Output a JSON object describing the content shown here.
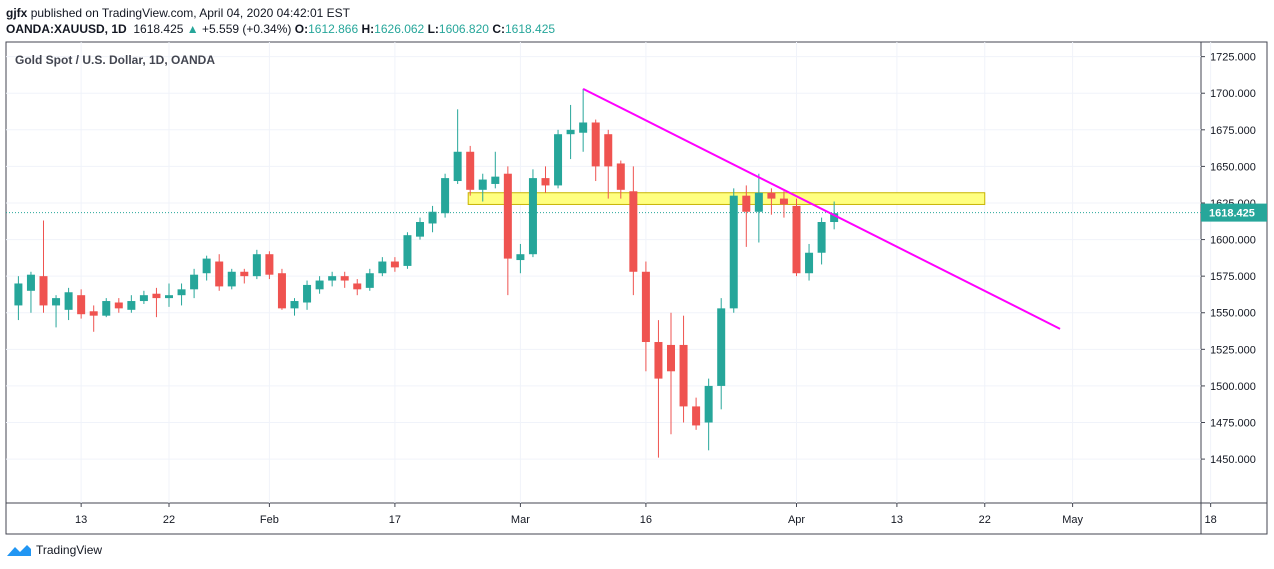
{
  "header": {
    "publisher": "gjfx",
    "published_text": "published on TradingView.com, April 04, 2020 04:42:01 EST",
    "symbol": "OANDA:XAUUSD, 1D",
    "last": "1618.425",
    "change": "+5.559 (+0.34%)",
    "open_label": "O:",
    "open": "1612.866",
    "high_label": "H:",
    "high": "1626.062",
    "low_label": "L:",
    "low": "1606.820",
    "close_label": "C:",
    "close": "1618.425"
  },
  "footer": {
    "brand": "TradingView"
  },
  "colors": {
    "up": "#26a69a",
    "down": "#ef5350",
    "trendline": "#ff00ff",
    "zone_fill": "#ffff80",
    "zone_border": "#c8b400",
    "price_line": "#26a69a"
  },
  "chart_data": {
    "type": "candlestick",
    "title": "Gold Spot / U.S. Dollar, 1D, OANDA",
    "ylim": [
      1420,
      1735
    ],
    "y_ticks": [
      "1725.000",
      "1700.000",
      "1675.000",
      "1650.000",
      "1625.000",
      "1600.000",
      "1575.000",
      "1550.000",
      "1525.000",
      "1500.000",
      "1475.000",
      "1450.000"
    ],
    "x_ticks": [
      {
        "label": "13",
        "slot": 5
      },
      {
        "label": "22",
        "slot": 12
      },
      {
        "label": "Feb",
        "slot": 20
      },
      {
        "label": "17",
        "slot": 30
      },
      {
        "label": "Mar",
        "slot": 40
      },
      {
        "label": "16",
        "slot": 50
      },
      {
        "label": "Apr",
        "slot": 62
      },
      {
        "label": "13",
        "slot": 70
      },
      {
        "label": "22",
        "slot": 77
      },
      {
        "label": "May",
        "slot": 84
      },
      {
        "label": "18",
        "slot": 95
      }
    ],
    "slot_max": 95,
    "current_price": "1618.425",
    "candles": [
      {
        "slot": 0,
        "o": 1555,
        "h": 1575,
        "l": 1545,
        "c": 1570
      },
      {
        "slot": 1,
        "o": 1565,
        "h": 1578,
        "l": 1550,
        "c": 1576
      },
      {
        "slot": 2,
        "o": 1575,
        "h": 1613,
        "l": 1550,
        "c": 1555
      },
      {
        "slot": 3,
        "o": 1555,
        "h": 1562,
        "l": 1540,
        "c": 1560
      },
      {
        "slot": 4,
        "o": 1552,
        "h": 1567,
        "l": 1545,
        "c": 1564
      },
      {
        "slot": 5,
        "o": 1562,
        "h": 1566,
        "l": 1546,
        "c": 1549
      },
      {
        "slot": 6,
        "o": 1551,
        "h": 1555,
        "l": 1537,
        "c": 1548
      },
      {
        "slot": 7,
        "o": 1548,
        "h": 1560,
        "l": 1547,
        "c": 1558
      },
      {
        "slot": 8,
        "o": 1557,
        "h": 1560,
        "l": 1550,
        "c": 1553
      },
      {
        "slot": 9,
        "o": 1552,
        "h": 1562,
        "l": 1550,
        "c": 1558
      },
      {
        "slot": 10,
        "o": 1558,
        "h": 1565,
        "l": 1556,
        "c": 1562
      },
      {
        "slot": 11,
        "o": 1563,
        "h": 1567,
        "l": 1547,
        "c": 1560
      },
      {
        "slot": 12,
        "o": 1560,
        "h": 1570,
        "l": 1554,
        "c": 1562
      },
      {
        "slot": 13,
        "o": 1562,
        "h": 1570,
        "l": 1555,
        "c": 1566
      },
      {
        "slot": 14,
        "o": 1566,
        "h": 1580,
        "l": 1560,
        "c": 1576
      },
      {
        "slot": 15,
        "o": 1577,
        "h": 1589,
        "l": 1572,
        "c": 1587
      },
      {
        "slot": 16,
        "o": 1585,
        "h": 1590,
        "l": 1565,
        "c": 1568
      },
      {
        "slot": 17,
        "o": 1568,
        "h": 1580,
        "l": 1566,
        "c": 1578
      },
      {
        "slot": 18,
        "o": 1578,
        "h": 1580,
        "l": 1570,
        "c": 1575
      },
      {
        "slot": 19,
        "o": 1575,
        "h": 1593,
        "l": 1573,
        "c": 1590
      },
      {
        "slot": 20,
        "o": 1590,
        "h": 1592,
        "l": 1573,
        "c": 1576
      },
      {
        "slot": 21,
        "o": 1577,
        "h": 1580,
        "l": 1552,
        "c": 1553
      },
      {
        "slot": 22,
        "o": 1553,
        "h": 1560,
        "l": 1548,
        "c": 1558
      },
      {
        "slot": 23,
        "o": 1557,
        "h": 1572,
        "l": 1552,
        "c": 1569
      },
      {
        "slot": 24,
        "o": 1566,
        "h": 1575,
        "l": 1563,
        "c": 1572
      },
      {
        "slot": 25,
        "o": 1572,
        "h": 1578,
        "l": 1568,
        "c": 1575
      },
      {
        "slot": 26,
        "o": 1575,
        "h": 1578,
        "l": 1567,
        "c": 1572
      },
      {
        "slot": 27,
        "o": 1570,
        "h": 1573,
        "l": 1562,
        "c": 1566
      },
      {
        "slot": 28,
        "o": 1567,
        "h": 1580,
        "l": 1565,
        "c": 1577
      },
      {
        "slot": 29,
        "o": 1577,
        "h": 1588,
        "l": 1575,
        "c": 1585
      },
      {
        "slot": 30,
        "o": 1585,
        "h": 1588,
        "l": 1578,
        "c": 1581
      },
      {
        "slot": 31,
        "o": 1582,
        "h": 1605,
        "l": 1580,
        "c": 1603
      },
      {
        "slot": 32,
        "o": 1602,
        "h": 1615,
        "l": 1600,
        "c": 1612
      },
      {
        "slot": 33,
        "o": 1611,
        "h": 1623,
        "l": 1605,
        "c": 1619
      },
      {
        "slot": 34,
        "o": 1618,
        "h": 1645,
        "l": 1615,
        "c": 1642
      },
      {
        "slot": 35,
        "o": 1640,
        "h": 1689,
        "l": 1638,
        "c": 1660
      },
      {
        "slot": 36,
        "o": 1660,
        "h": 1664,
        "l": 1630,
        "c": 1634
      },
      {
        "slot": 37,
        "o": 1634,
        "h": 1645,
        "l": 1626,
        "c": 1641
      },
      {
        "slot": 38,
        "o": 1638,
        "h": 1660,
        "l": 1635,
        "c": 1643
      },
      {
        "slot": 39,
        "o": 1645,
        "h": 1650,
        "l": 1562,
        "c": 1587
      },
      {
        "slot": 40,
        "o": 1586,
        "h": 1597,
        "l": 1577,
        "c": 1590
      },
      {
        "slot": 41,
        "o": 1590,
        "h": 1648,
        "l": 1588,
        "c": 1642
      },
      {
        "slot": 42,
        "o": 1642,
        "h": 1650,
        "l": 1632,
        "c": 1637
      },
      {
        "slot": 43,
        "o": 1637,
        "h": 1675,
        "l": 1635,
        "c": 1672
      },
      {
        "slot": 44,
        "o": 1672,
        "h": 1692,
        "l": 1655,
        "c": 1675
      },
      {
        "slot": 45,
        "o": 1673,
        "h": 1703,
        "l": 1660,
        "c": 1680
      },
      {
        "slot": 46,
        "o": 1680,
        "h": 1682,
        "l": 1640,
        "c": 1650
      },
      {
        "slot": 47,
        "o": 1672,
        "h": 1675,
        "l": 1628,
        "c": 1650
      },
      {
        "slot": 48,
        "o": 1652,
        "h": 1654,
        "l": 1628,
        "c": 1634
      },
      {
        "slot": 49,
        "o": 1633,
        "h": 1650,
        "l": 1562,
        "c": 1578
      },
      {
        "slot": 50,
        "o": 1578,
        "h": 1585,
        "l": 1510,
        "c": 1530
      },
      {
        "slot": 51,
        "o": 1530,
        "h": 1545,
        "l": 1451,
        "c": 1505
      },
      {
        "slot": 52,
        "o": 1528,
        "h": 1550,
        "l": 1467,
        "c": 1510
      },
      {
        "slot": 53,
        "o": 1528,
        "h": 1548,
        "l": 1475,
        "c": 1486
      },
      {
        "slot": 54,
        "o": 1486,
        "h": 1492,
        "l": 1470,
        "c": 1473
      },
      {
        "slot": 55,
        "o": 1475,
        "h": 1505,
        "l": 1456,
        "c": 1500
      },
      {
        "slot": 56,
        "o": 1500,
        "h": 1560,
        "l": 1484,
        "c": 1553
      },
      {
        "slot": 57,
        "o": 1553,
        "h": 1635,
        "l": 1550,
        "c": 1630
      },
      {
        "slot": 58,
        "o": 1630,
        "h": 1637,
        "l": 1595,
        "c": 1619
      },
      {
        "slot": 59,
        "o": 1619,
        "h": 1645,
        "l": 1598,
        "c": 1632
      },
      {
        "slot": 60,
        "o": 1632,
        "h": 1635,
        "l": 1617,
        "c": 1628
      },
      {
        "slot": 61,
        "o": 1628,
        "h": 1633,
        "l": 1615,
        "c": 1624
      },
      {
        "slot": 62,
        "o": 1623,
        "h": 1628,
        "l": 1575,
        "c": 1577
      },
      {
        "slot": 63,
        "o": 1577,
        "h": 1597,
        "l": 1572,
        "c": 1591
      },
      {
        "slot": 64,
        "o": 1591,
        "h": 1615,
        "l": 1583,
        "c": 1612
      },
      {
        "slot": 65,
        "o": 1612,
        "h": 1626,
        "l": 1607,
        "c": 1618
      }
    ],
    "trendline": {
      "from": {
        "slot": 45,
        "price": 1703
      },
      "to": {
        "slot": 83,
        "price": 1539
      }
    },
    "zone": {
      "from_slot": 36,
      "to_slot": 77,
      "low": 1624,
      "high": 1632
    }
  }
}
